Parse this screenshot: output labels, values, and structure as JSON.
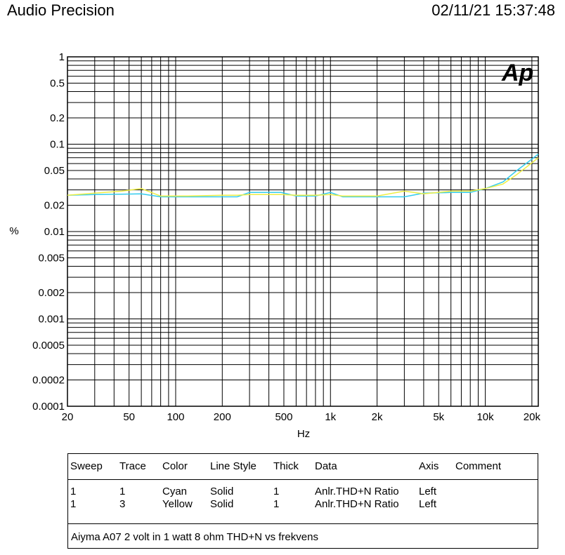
{
  "header": {
    "app_title": "Audio Precision",
    "timestamp": "02/11/21 15:37:48"
  },
  "logo_text": "Ap",
  "logo_color": "#1f2fe0",
  "chart_data": {
    "type": "line",
    "xlabel": "Hz",
    "ylabel": "%",
    "x_scale": "log",
    "y_scale": "log",
    "xlim": [
      20,
      22000
    ],
    "ylim": [
      0.0001,
      1
    ],
    "x_ticks": [
      {
        "value": 20,
        "label": "20"
      },
      {
        "value": 50,
        "label": "50"
      },
      {
        "value": 100,
        "label": "100"
      },
      {
        "value": 200,
        "label": "200"
      },
      {
        "value": 500,
        "label": "500"
      },
      {
        "value": 1000,
        "label": "1k"
      },
      {
        "value": 2000,
        "label": "2k"
      },
      {
        "value": 5000,
        "label": "5k"
      },
      {
        "value": 10000,
        "label": "10k"
      },
      {
        "value": 20000,
        "label": "20k"
      }
    ],
    "y_ticks": [
      {
        "value": 1,
        "label": "1"
      },
      {
        "value": 0.5,
        "label": "0.5"
      },
      {
        "value": 0.2,
        "label": "0.2"
      },
      {
        "value": 0.1,
        "label": "0.1"
      },
      {
        "value": 0.05,
        "label": "0.05"
      },
      {
        "value": 0.02,
        "label": "0.02"
      },
      {
        "value": 0.01,
        "label": "0.01"
      },
      {
        "value": 0.005,
        "label": "0.005"
      },
      {
        "value": 0.002,
        "label": "0.002"
      },
      {
        "value": 0.001,
        "label": "0.001"
      },
      {
        "value": 0.0005,
        "label": "0.0005"
      },
      {
        "value": 0.0002,
        "label": "0.0002"
      },
      {
        "value": 0.0001,
        "label": "0.0001"
      }
    ],
    "grid": true,
    "series": [
      {
        "color": "#33ccee",
        "points": [
          [
            20,
            0.026
          ],
          [
            30,
            0.0265
          ],
          [
            45,
            0.0268
          ],
          [
            60,
            0.027
          ],
          [
            80,
            0.025
          ],
          [
            120,
            0.025
          ],
          [
            200,
            0.025
          ],
          [
            250,
            0.025
          ],
          [
            300,
            0.028
          ],
          [
            480,
            0.028
          ],
          [
            600,
            0.0255
          ],
          [
            800,
            0.0255
          ],
          [
            1000,
            0.028
          ],
          [
            1200,
            0.025
          ],
          [
            2000,
            0.025
          ],
          [
            3000,
            0.025
          ],
          [
            4000,
            0.0275
          ],
          [
            6000,
            0.028
          ],
          [
            8000,
            0.028
          ],
          [
            10000,
            0.031
          ],
          [
            13000,
            0.037
          ],
          [
            16000,
            0.05
          ],
          [
            19000,
            0.063
          ],
          [
            22000,
            0.077
          ]
        ]
      },
      {
        "color": "#eeee44",
        "points": [
          [
            20,
            0.026
          ],
          [
            30,
            0.0275
          ],
          [
            45,
            0.029
          ],
          [
            60,
            0.031
          ],
          [
            80,
            0.0255
          ],
          [
            120,
            0.0255
          ],
          [
            200,
            0.026
          ],
          [
            250,
            0.026
          ],
          [
            300,
            0.0265
          ],
          [
            480,
            0.0265
          ],
          [
            600,
            0.026
          ],
          [
            800,
            0.026
          ],
          [
            1000,
            0.0265
          ],
          [
            1200,
            0.0255
          ],
          [
            2000,
            0.0255
          ],
          [
            3000,
            0.029
          ],
          [
            4000,
            0.027
          ],
          [
            6000,
            0.029
          ],
          [
            8000,
            0.029
          ],
          [
            10000,
            0.031
          ],
          [
            13000,
            0.035
          ],
          [
            16000,
            0.045
          ],
          [
            19000,
            0.057
          ],
          [
            22000,
            0.07
          ]
        ]
      }
    ]
  },
  "legend": {
    "headers": [
      "Sweep",
      "Trace",
      "Color",
      "Line Style",
      "Thick",
      "Data",
      "Axis",
      "Comment"
    ],
    "rows": [
      [
        "1",
        "1",
        "Cyan",
        "Solid",
        "1",
        "Anlr.THD+N Ratio",
        "Left",
        ""
      ],
      [
        "1",
        "3",
        "Yellow",
        "Solid",
        "1",
        "Anlr.THD+N Ratio",
        "Left",
        ""
      ]
    ],
    "comment": "Aiyma A07 2 volt in 1 watt 8 ohm THD+N vs frekvens"
  }
}
